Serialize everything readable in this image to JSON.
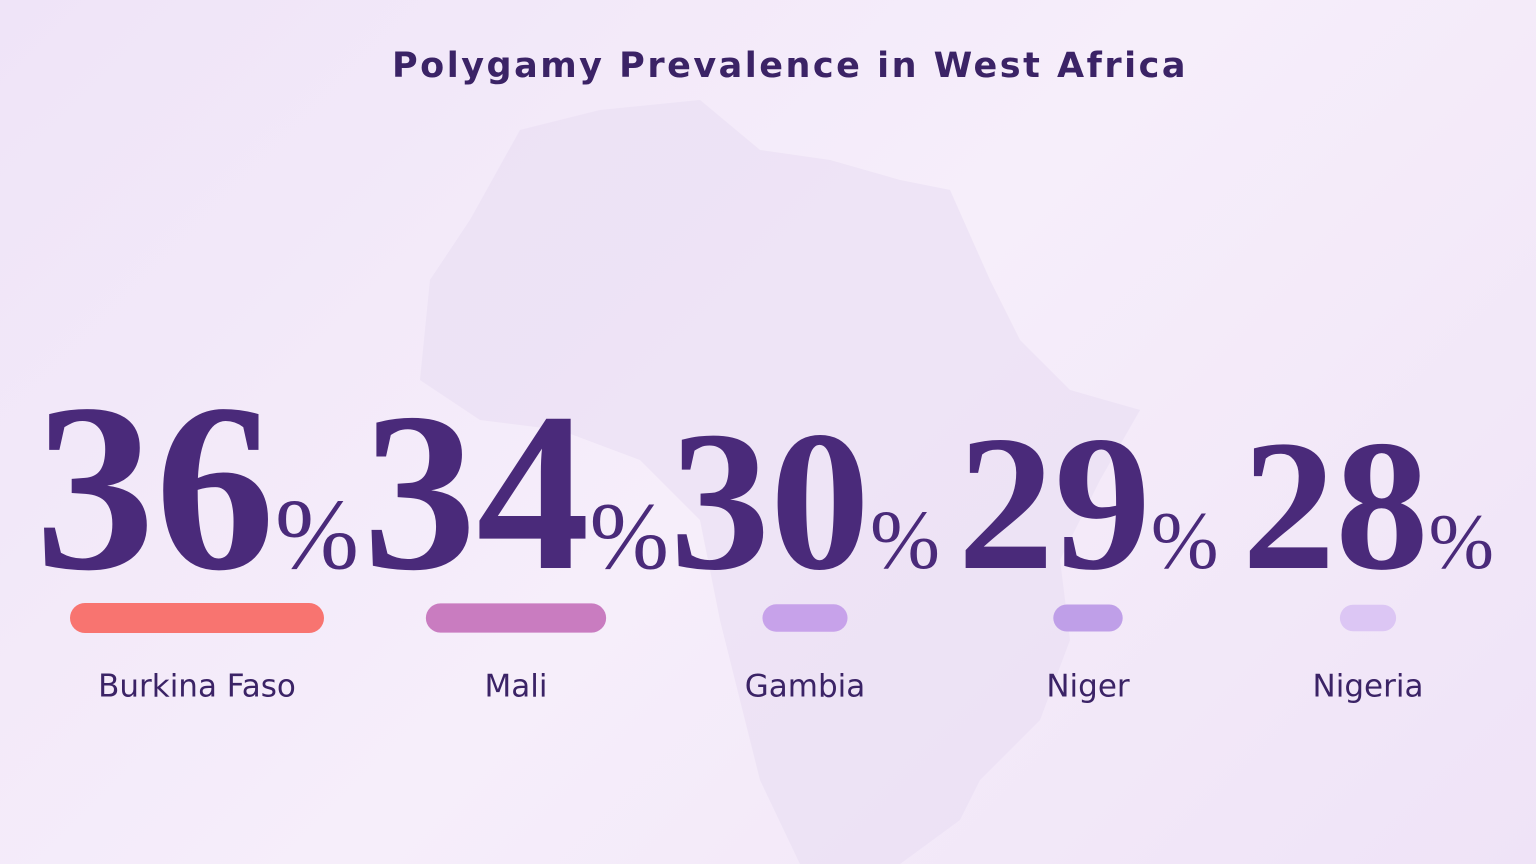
{
  "chart_data": {
    "type": "bar",
    "title": "Polygamy Prevalence in West Africa",
    "categories": [
      "Burkina Faso",
      "Mali",
      "Gambia",
      "Niger",
      "Nigeria"
    ],
    "values": [
      36,
      34,
      30,
      29,
      28
    ],
    "value_labels": [
      "36%",
      "34%",
      "30%",
      "29%",
      "28%"
    ],
    "colors": [
      "#f87470",
      "#c97cc0",
      "#c7a2ea",
      "#bf9fe8",
      "#dcc6f4"
    ]
  }
}
